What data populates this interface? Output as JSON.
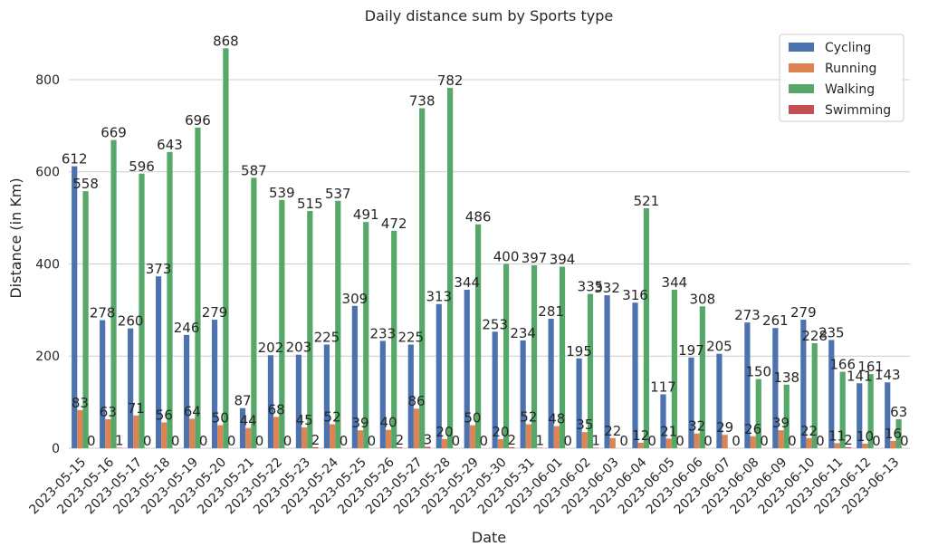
{
  "chart_data": {
    "type": "bar",
    "title": "Daily distance sum by Sports type",
    "xlabel": "Date",
    "ylabel": "Distance (in Km)",
    "ylim": [
      0,
      910
    ],
    "yticks": [
      0,
      200,
      400,
      600,
      800
    ],
    "grid": true,
    "legend_position": "top-right",
    "categories": [
      "2023-05-15",
      "2023-05-16",
      "2023-05-17",
      "2023-05-18",
      "2023-05-19",
      "2023-05-20",
      "2023-05-21",
      "2023-05-22",
      "2023-05-23",
      "2023-05-24",
      "2023-05-25",
      "2023-05-26",
      "2023-05-27",
      "2023-05-28",
      "2023-05-29",
      "2023-05-30",
      "2023-05-31",
      "2023-06-01",
      "2023-06-02",
      "2023-06-03",
      "2023-06-04",
      "2023-06-05",
      "2023-06-06",
      "2023-06-07",
      "2023-06-08",
      "2023-06-09",
      "2023-06-10",
      "2023-06-11",
      "2023-06-12",
      "2023-06-13"
    ],
    "series": [
      {
        "name": "Cycling",
        "color": "#4c72b0",
        "values": [
          612,
          278,
          260,
          373,
          246,
          279,
          87,
          202,
          203,
          225,
          309,
          233,
          225,
          313,
          344,
          253,
          234,
          281,
          195,
          332,
          316,
          117,
          197,
          205,
          273,
          261,
          279,
          235,
          141,
          143
        ]
      },
      {
        "name": "Running",
        "color": "#dd8452",
        "values": [
          83,
          63,
          71,
          56,
          64,
          50,
          44,
          68,
          45,
          52,
          39,
          40,
          86,
          20,
          50,
          20,
          52,
          48,
          35,
          22,
          12,
          21,
          32,
          29,
          26,
          39,
          22,
          11,
          10,
          16
        ]
      },
      {
        "name": "Walking",
        "color": "#55a868",
        "values": [
          558,
          669,
          596,
          643,
          696,
          868,
          587,
          539,
          515,
          537,
          491,
          472,
          738,
          782,
          486,
          400,
          397,
          394,
          335,
          null,
          521,
          344,
          308,
          null,
          150,
          138,
          228,
          166,
          161,
          63
        ]
      },
      {
        "name": "Swimming",
        "color": "#c44e52",
        "values": [
          0,
          1,
          0,
          0,
          0,
          0,
          0,
          0,
          2,
          0,
          0,
          2,
          3,
          0,
          0,
          2,
          1,
          0,
          1,
          0,
          0,
          0,
          0,
          0,
          0,
          0,
          0,
          2,
          0,
          0
        ]
      }
    ]
  }
}
